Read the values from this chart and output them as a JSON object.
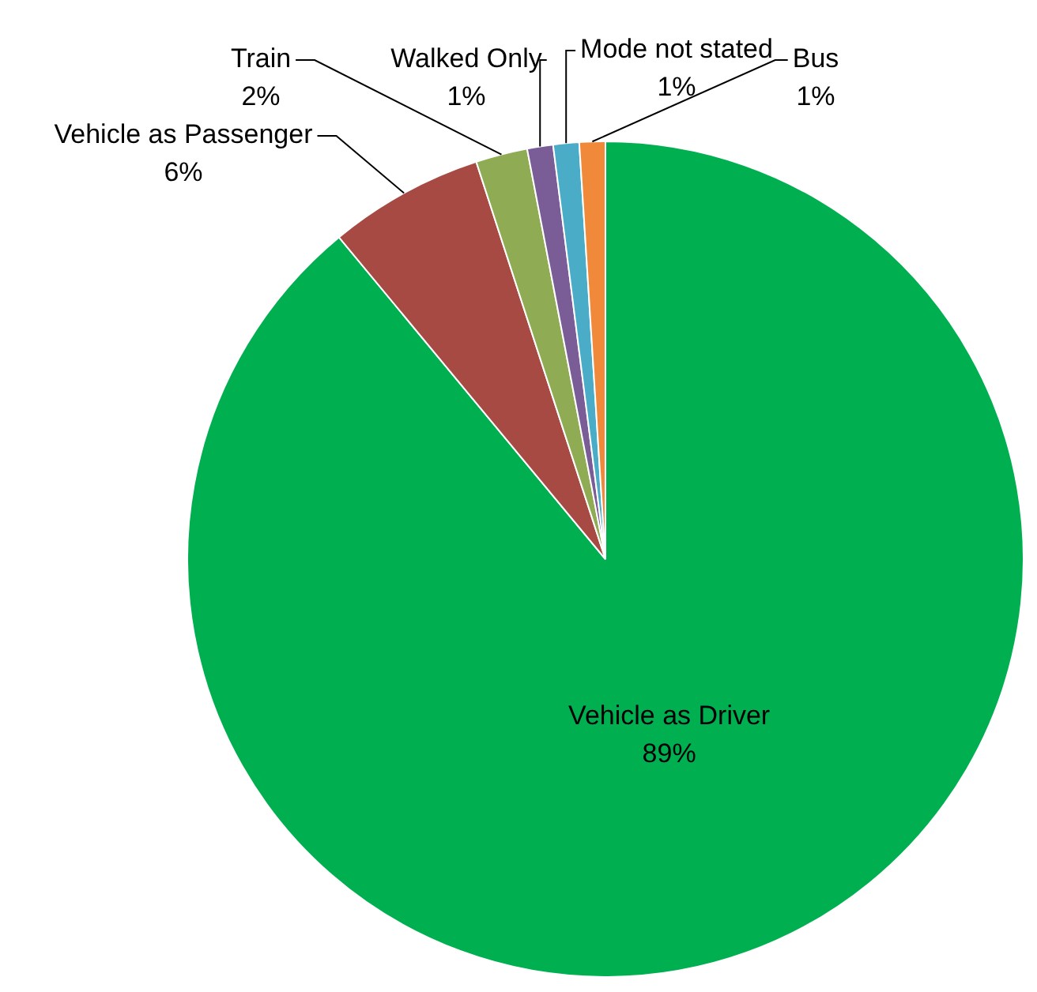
{
  "chart_data": {
    "type": "pie",
    "categories": [
      "Vehicle as Driver",
      "Vehicle as Passenger",
      "Train",
      "Walked Only",
      "Mode not stated",
      "Bus"
    ],
    "values": [
      89,
      6,
      2,
      1,
      1,
      1
    ],
    "value_labels": [
      "89%",
      "6%",
      "2%",
      "1%",
      "1%",
      "1%"
    ],
    "colors": [
      "#00b050",
      "#a84a44",
      "#8fac55",
      "#7a5c97",
      "#4aacc6",
      "#f08a3a"
    ],
    "legend": false
  }
}
